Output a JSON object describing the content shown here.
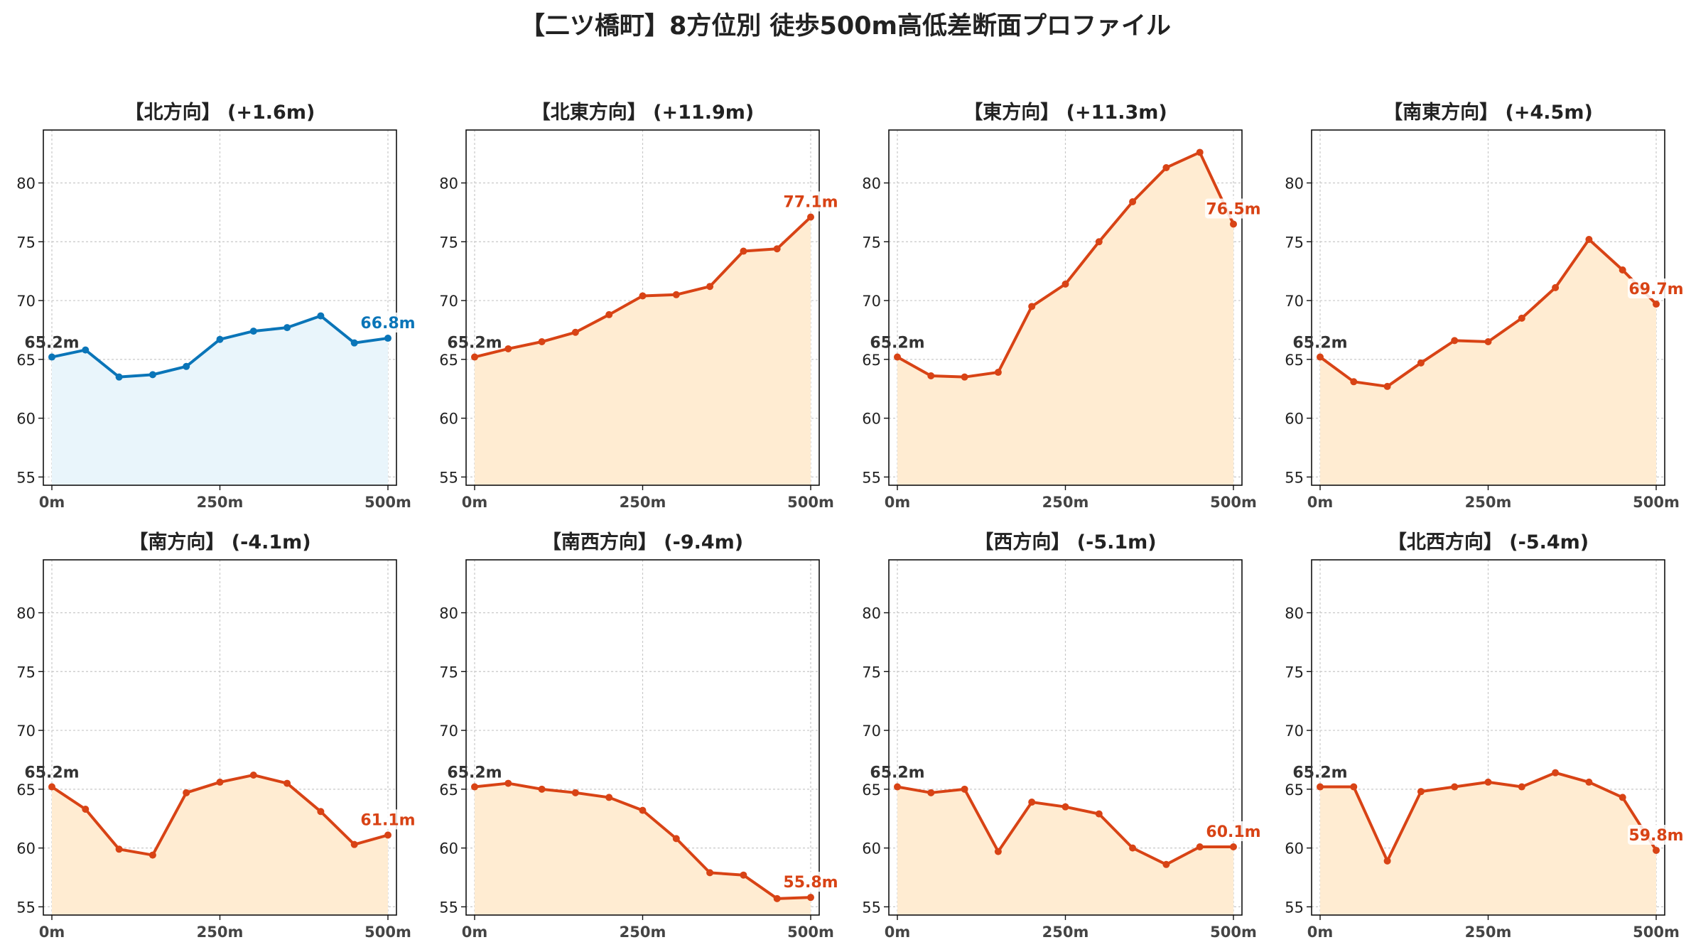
{
  "figure_title": "【二ツ橋町】8方位別 徒歩500m高低差断面プロファイル",
  "colors": {
    "up_line": "#d84315",
    "up_fill": "#ffecd2",
    "flat_line": "#0a75b8",
    "flat_fill": "#e9f5fb",
    "start_label": "#333333",
    "grid": "#c8c8c8"
  },
  "chart_data": [
    {
      "type": "area",
      "title": "【北方向】 (+1.6m)",
      "style": "flat",
      "x": [
        0,
        50,
        100,
        150,
        200,
        250,
        300,
        350,
        400,
        450,
        500
      ],
      "values": [
        65.2,
        65.8,
        63.5,
        63.7,
        64.4,
        66.7,
        67.4,
        67.7,
        68.7,
        66.4,
        66.8
      ],
      "start_label": "65.2m",
      "end_label": "66.8m",
      "ylim": [
        54.3,
        84.5
      ],
      "yticks": [
        55,
        60,
        65,
        70,
        75,
        80
      ],
      "xticks": [
        0,
        250,
        500
      ],
      "xticklabels": [
        "0m",
        "250m",
        "500m"
      ],
      "grid": true
    },
    {
      "type": "area",
      "title": "【北東方向】 (+11.9m)",
      "style": "up",
      "x": [
        0,
        50,
        100,
        150,
        200,
        250,
        300,
        350,
        400,
        450,
        500
      ],
      "values": [
        65.2,
        65.9,
        66.5,
        67.3,
        68.8,
        70.4,
        70.5,
        71.2,
        74.2,
        74.4,
        77.1
      ],
      "start_label": "65.2m",
      "end_label": "77.1m",
      "ylim": [
        54.3,
        84.5
      ],
      "yticks": [
        55,
        60,
        65,
        70,
        75,
        80
      ],
      "xticks": [
        0,
        250,
        500
      ],
      "xticklabels": [
        "0m",
        "250m",
        "500m"
      ],
      "grid": true
    },
    {
      "type": "area",
      "title": "【東方向】 (+11.3m)",
      "style": "up",
      "x": [
        0,
        50,
        100,
        150,
        200,
        250,
        300,
        350,
        400,
        450,
        500
      ],
      "values": [
        65.2,
        63.6,
        63.5,
        63.9,
        69.5,
        71.4,
        75.0,
        78.4,
        81.3,
        82.6,
        76.5
      ],
      "start_label": "65.2m",
      "end_label": "76.5m",
      "ylim": [
        54.3,
        84.5
      ],
      "yticks": [
        55,
        60,
        65,
        70,
        75,
        80
      ],
      "xticks": [
        0,
        250,
        500
      ],
      "xticklabels": [
        "0m",
        "250m",
        "500m"
      ],
      "grid": true
    },
    {
      "type": "area",
      "title": "【南東方向】 (+4.5m)",
      "style": "up",
      "x": [
        0,
        50,
        100,
        150,
        200,
        250,
        300,
        350,
        400,
        450,
        500
      ],
      "values": [
        65.2,
        63.1,
        62.7,
        64.7,
        66.6,
        66.5,
        68.5,
        71.1,
        75.2,
        72.6,
        69.7
      ],
      "start_label": "65.2m",
      "end_label": "69.7m",
      "ylim": [
        54.3,
        84.5
      ],
      "yticks": [
        55,
        60,
        65,
        70,
        75,
        80
      ],
      "xticks": [
        0,
        250,
        500
      ],
      "xticklabels": [
        "0m",
        "250m",
        "500m"
      ],
      "grid": true
    },
    {
      "type": "area",
      "title": "【南方向】 (-4.1m)",
      "style": "up",
      "x": [
        0,
        50,
        100,
        150,
        200,
        250,
        300,
        350,
        400,
        450,
        500
      ],
      "values": [
        65.2,
        63.3,
        59.9,
        59.4,
        64.7,
        65.6,
        66.2,
        65.5,
        63.1,
        60.3,
        61.1
      ],
      "start_label": "65.2m",
      "end_label": "61.1m",
      "ylim": [
        54.3,
        84.5
      ],
      "yticks": [
        55,
        60,
        65,
        70,
        75,
        80
      ],
      "xticks": [
        0,
        250,
        500
      ],
      "xticklabels": [
        "0m",
        "250m",
        "500m"
      ],
      "grid": true
    },
    {
      "type": "area",
      "title": "【南西方向】 (-9.4m)",
      "style": "up",
      "x": [
        0,
        50,
        100,
        150,
        200,
        250,
        300,
        350,
        400,
        450,
        500
      ],
      "values": [
        65.2,
        65.5,
        65.0,
        64.7,
        64.3,
        63.2,
        60.8,
        57.9,
        57.7,
        55.7,
        55.8
      ],
      "start_label": "65.2m",
      "end_label": "55.8m",
      "ylim": [
        54.3,
        84.5
      ],
      "yticks": [
        55,
        60,
        65,
        70,
        75,
        80
      ],
      "xticks": [
        0,
        250,
        500
      ],
      "xticklabels": [
        "0m",
        "250m",
        "500m"
      ],
      "grid": true
    },
    {
      "type": "area",
      "title": "【西方向】 (-5.1m)",
      "style": "up",
      "x": [
        0,
        50,
        100,
        150,
        200,
        250,
        300,
        350,
        400,
        450,
        500
      ],
      "values": [
        65.2,
        64.7,
        65.0,
        59.7,
        63.9,
        63.5,
        62.9,
        60.0,
        58.6,
        60.1,
        60.1
      ],
      "start_label": "65.2m",
      "end_label": "60.1m",
      "ylim": [
        54.3,
        84.5
      ],
      "yticks": [
        55,
        60,
        65,
        70,
        75,
        80
      ],
      "xticks": [
        0,
        250,
        500
      ],
      "xticklabels": [
        "0m",
        "250m",
        "500m"
      ],
      "grid": true
    },
    {
      "type": "area",
      "title": "【北西方向】 (-5.4m)",
      "style": "up",
      "x": [
        0,
        50,
        100,
        150,
        200,
        250,
        300,
        350,
        400,
        450,
        500
      ],
      "values": [
        65.2,
        65.2,
        58.9,
        64.8,
        65.2,
        65.6,
        65.2,
        66.4,
        65.6,
        64.3,
        59.8
      ],
      "start_label": "65.2m",
      "end_label": "59.8m",
      "ylim": [
        54.3,
        84.5
      ],
      "yticks": [
        55,
        60,
        65,
        70,
        75,
        80
      ],
      "xticks": [
        0,
        250,
        500
      ],
      "xticklabels": [
        "0m",
        "250m",
        "500m"
      ],
      "grid": true
    }
  ]
}
